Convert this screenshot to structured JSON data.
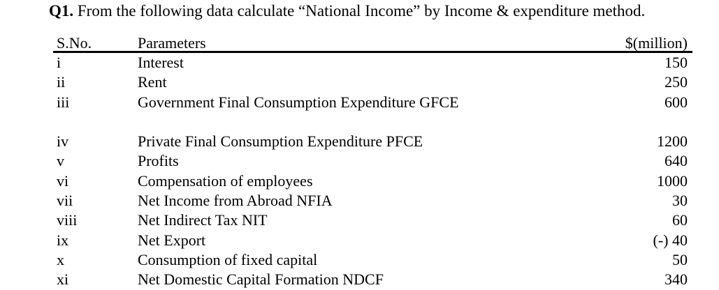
{
  "question": {
    "number": "Q1.",
    "text": " From the following data calculate “National Income” by Income & expenditure method."
  },
  "table": {
    "headers": {
      "sno": "S.No.",
      "parameter": "Parameters",
      "value": "$(million)"
    },
    "rows": [
      {
        "sno": "i",
        "parameter": "Interest",
        "value": "150"
      },
      {
        "sno": "ii",
        "parameter": "Rent",
        "value": "250"
      },
      {
        "sno": "iii",
        "parameter": "Government Final Consumption Expenditure GFCE",
        "value": "600"
      },
      {
        "sno": "iv",
        "parameter": "Private Final Consumption Expenditure PFCE",
        "value": "1200"
      },
      {
        "sno": "v",
        "parameter": "Profits",
        "value": "640"
      },
      {
        "sno": "vi",
        "parameter": "Compensation of employees",
        "value": "1000"
      },
      {
        "sno": "vii",
        "parameter": "Net Income from Abroad NFIA",
        "value": "30"
      },
      {
        "sno": "viii",
        "parameter": "Net Indirect Tax NIT",
        "value": "60"
      },
      {
        "sno": "ix",
        "parameter": "Net Export",
        "value": "(-) 40"
      },
      {
        "sno": "x",
        "parameter": "Consumption of fixed capital",
        "value": "50"
      },
      {
        "sno": "xi",
        "parameter": "Net Domestic Capital Formation NDCF",
        "value": "340"
      }
    ]
  }
}
